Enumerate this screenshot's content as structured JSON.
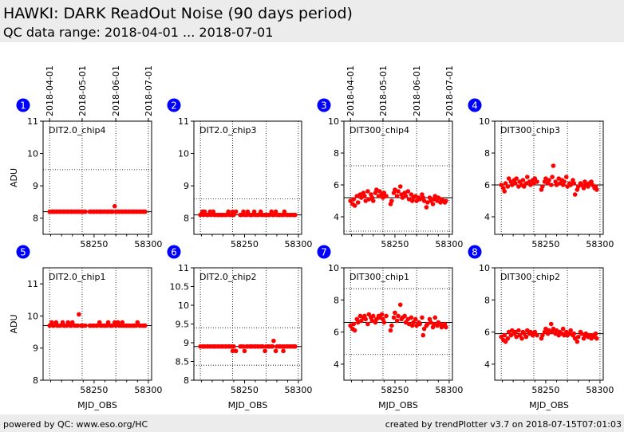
{
  "header": {
    "title": "HAWKI: DARK ReadOut Noise (90 days period)",
    "subtitle": "QC data range: 2018-04-01 ... 2018-07-01"
  },
  "footer": {
    "left": "powered by QC: www.eso.org/HC",
    "right": "created by trendPlotter v3.7 on 2018-07-15T07:01:03"
  },
  "colors": {
    "marker": "#ff0000",
    "badge": "#0000ff",
    "frame": "#000000"
  },
  "chart_data": [
    {
      "index": "1",
      "type": "scatter",
      "label": "DIT2.0_chip4",
      "ylabel": "ADU",
      "xlabel": "",
      "xlim": [
        58203,
        58303
      ],
      "ylim": [
        7.5,
        11
      ],
      "yticks": [
        8,
        9,
        10,
        11
      ],
      "xticks": [
        58250,
        58300
      ],
      "ref_line": 8.2,
      "upper_line": 9.5,
      "lower_line": null,
      "top_dates": [
        "2018-04-01",
        "2018-05-01",
        "2018-06-01",
        "2018-07-01"
      ],
      "x": [
        58209,
        58211,
        58212,
        58213,
        58215,
        58216,
        58218,
        58219,
        58221,
        58222,
        58223,
        58225,
        58226,
        58228,
        58229,
        58230,
        58232,
        58233,
        58235,
        58236,
        58238,
        58239,
        58240,
        58242,
        58246,
        58247,
        58249,
        58250,
        58252,
        58253,
        58255,
        58256,
        58257,
        58259,
        58260,
        58262,
        58263,
        58265,
        58266,
        58267,
        58269,
        58270,
        58272,
        58273,
        58275,
        58276,
        58277,
        58279,
        58280,
        58282,
        58283,
        58285,
        58286,
        58287,
        58289,
        58290,
        58292,
        58293,
        58295,
        58296,
        58297
      ],
      "y": [
        8.2,
        8.2,
        8.2,
        8.2,
        8.2,
        8.2,
        8.2,
        8.2,
        8.2,
        8.2,
        8.2,
        8.2,
        8.2,
        8.2,
        8.2,
        8.2,
        8.2,
        8.2,
        8.2,
        8.2,
        8.2,
        8.2,
        8.2,
        8.2,
        8.2,
        8.2,
        8.2,
        8.2,
        8.2,
        8.2,
        8.2,
        8.2,
        8.2,
        8.2,
        8.2,
        8.2,
        8.2,
        8.2,
        8.2,
        8.2,
        8.37,
        8.2,
        8.2,
        8.2,
        8.2,
        8.2,
        8.2,
        8.2,
        8.2,
        8.2,
        8.2,
        8.2,
        8.2,
        8.2,
        8.2,
        8.2,
        8.2,
        8.2,
        8.2,
        8.2,
        8.2
      ]
    },
    {
      "index": "2",
      "type": "scatter",
      "label": "DIT2.0_chip3",
      "ylabel": "",
      "xlabel": "",
      "xlim": [
        58203,
        58303
      ],
      "ylim": [
        7.5,
        11
      ],
      "yticks": [
        8,
        9,
        10,
        11
      ],
      "xticks": [
        58250,
        58300
      ],
      "ref_line": 8.1,
      "upper_line": 8.6,
      "lower_line": null,
      "top_dates": [],
      "x": [
        58209,
        58211,
        58212,
        58213,
        58215,
        58216,
        58218,
        58219,
        58221,
        58222,
        58223,
        58225,
        58226,
        58228,
        58229,
        58230,
        58232,
        58233,
        58235,
        58236,
        58238,
        58239,
        58240,
        58242,
        58246,
        58247,
        58249,
        58250,
        58252,
        58253,
        58255,
        58256,
        58257,
        58259,
        58260,
        58262,
        58263,
        58265,
        58266,
        58267,
        58269,
        58270,
        58272,
        58273,
        58275,
        58276,
        58277,
        58279,
        58280,
        58282,
        58283,
        58285,
        58286,
        58287,
        58289,
        58290,
        58292,
        58293,
        58295,
        58296,
        58297
      ],
      "y": [
        8.1,
        8.2,
        8.1,
        8.2,
        8.1,
        8.1,
        8.2,
        8.1,
        8.2,
        8.1,
        8.1,
        8.1,
        8.1,
        8.1,
        8.1,
        8.1,
        8.1,
        8.1,
        8.2,
        8.1,
        8.1,
        8.2,
        8.1,
        8.2,
        8.1,
        8.1,
        8.2,
        8.1,
        8.1,
        8.2,
        8.1,
        8.1,
        8.1,
        8.2,
        8.1,
        8.1,
        8.1,
        8.2,
        8.1,
        8.1,
        8.1,
        8.1,
        8.1,
        8.1,
        8.2,
        8.1,
        8.1,
        8.2,
        8.1,
        8.1,
        8.1,
        8.1,
        8.1,
        8.2,
        8.1,
        8.1,
        8.1,
        8.1,
        8.1,
        8.1,
        8.1
      ]
    },
    {
      "index": "3",
      "type": "scatter",
      "label": "DIT300_chip4",
      "ylabel": "",
      "xlabel": "",
      "xlim": [
        58203,
        58303
      ],
      "ylim": [
        2.9,
        10
      ],
      "yticks": [
        4,
        6,
        8,
        10
      ],
      "xticks": [
        58250,
        58300
      ],
      "ref_line": 5.2,
      "upper_line": 7.2,
      "lower_line": 3.1,
      "top_dates": [
        "2018-04-01",
        "2018-05-01",
        "2018-06-01",
        "2018-07-01"
      ],
      "x": [
        58209,
        58211,
        58212,
        58213,
        58215,
        58216,
        58218,
        58219,
        58221,
        58222,
        58223,
        58225,
        58226,
        58228,
        58229,
        58230,
        58232,
        58233,
        58235,
        58236,
        58238,
        58239,
        58240,
        58242,
        58246,
        58247,
        58249,
        58250,
        58252,
        58253,
        58255,
        58256,
        58257,
        58259,
        58260,
        58262,
        58263,
        58265,
        58266,
        58267,
        58269,
        58270,
        58272,
        58273,
        58275,
        58276,
        58277,
        58279,
        58280,
        58282,
        58283,
        58285,
        58286,
        58287,
        58289,
        58290,
        58292,
        58293,
        58295,
        58296,
        58297
      ],
      "y": [
        5.0,
        4.8,
        5.1,
        4.7,
        5.3,
        4.9,
        5.4,
        5.2,
        5.5,
        5.3,
        5.0,
        5.6,
        5.1,
        5.4,
        5.2,
        5.0,
        5.5,
        5.7,
        5.3,
        5.6,
        5.4,
        5.2,
        5.5,
        5.3,
        4.8,
        5.0,
        5.5,
        5.7,
        5.3,
        5.6,
        5.9,
        5.4,
        5.2,
        5.5,
        5.3,
        5.6,
        5.1,
        5.4,
        5.0,
        5.2,
        5.3,
        5.0,
        5.2,
        5.1,
        5.4,
        5.2,
        5.0,
        4.6,
        4.9,
        5.2,
        5.0,
        4.8,
        5.1,
        5.3,
        5.0,
        5.2,
        4.9,
        5.1,
        5.0,
        4.9,
        5.0
      ]
    },
    {
      "index": "4",
      "type": "scatter",
      "label": "DIT300_chip3",
      "ylabel": "",
      "xlabel": "",
      "xlim": [
        58203,
        58303
      ],
      "ylim": [
        2.9,
        10
      ],
      "yticks": [
        4,
        6,
        8,
        10
      ],
      "xticks": [
        58250,
        58300
      ],
      "ref_line": 6.0,
      "upper_line": null,
      "lower_line": null,
      "top_dates": [],
      "x": [
        58209,
        58211,
        58212,
        58213,
        58215,
        58216,
        58218,
        58219,
        58221,
        58222,
        58223,
        58225,
        58226,
        58228,
        58229,
        58230,
        58232,
        58233,
        58235,
        58236,
        58238,
        58239,
        58240,
        58242,
        58246,
        58247,
        58249,
        58250,
        58252,
        58253,
        58255,
        58256,
        58257,
        58259,
        58260,
        58262,
        58263,
        58265,
        58266,
        58267,
        58269,
        58270,
        58272,
        58273,
        58275,
        58276,
        58277,
        58279,
        58280,
        58282,
        58283,
        58285,
        58286,
        58287,
        58289,
        58290,
        58292,
        58293,
        58295,
        58296,
        58297
      ],
      "y": [
        6.0,
        5.8,
        5.6,
        6.1,
        5.9,
        6.4,
        6.2,
        6.0,
        6.3,
        6.1,
        6.4,
        5.9,
        6.2,
        6.0,
        6.3,
        5.9,
        6.1,
        6.5,
        6.2,
        6.0,
        6.3,
        6.1,
        6.4,
        6.2,
        5.7,
        5.9,
        6.2,
        6.4,
        6.1,
        6.3,
        6.0,
        6.5,
        7.2,
        6.2,
        6.0,
        6.4,
        6.1,
        6.3,
        6.0,
        6.2,
        6.5,
        5.9,
        6.1,
        6.0,
        6.3,
        6.1,
        5.4,
        5.7,
        5.9,
        6.1,
        6.0,
        5.8,
        6.2,
        6.0,
        5.9,
        6.1,
        6.2,
        6.0,
        5.8,
        5.9,
        5.7
      ]
    },
    {
      "index": "5",
      "type": "scatter",
      "label": "DIT2.0_chip1",
      "ylabel": "ADU",
      "xlabel": "MJD_OBS",
      "xlim": [
        58203,
        58303
      ],
      "ylim": [
        8,
        11.5
      ],
      "yticks": [
        8,
        9,
        10,
        11
      ],
      "xticks": [
        58250,
        58300
      ],
      "ref_line": 9.7,
      "upper_line": null,
      "lower_line": null,
      "top_dates": [],
      "x": [
        58209,
        58211,
        58212,
        58213,
        58215,
        58216,
        58218,
        58219,
        58221,
        58222,
        58223,
        58225,
        58226,
        58228,
        58229,
        58230,
        58232,
        58233,
        58235,
        58236,
        58238,
        58239,
        58240,
        58242,
        58246,
        58247,
        58249,
        58250,
        58252,
        58253,
        58255,
        58256,
        58257,
        58259,
        58260,
        58262,
        58263,
        58265,
        58266,
        58267,
        58269,
        58270,
        58272,
        58273,
        58275,
        58276,
        58277,
        58279,
        58280,
        58282,
        58283,
        58285,
        58286,
        58287,
        58289,
        58290,
        58292,
        58293,
        58295,
        58296,
        58297
      ],
      "y": [
        9.7,
        9.8,
        9.7,
        9.7,
        9.8,
        9.7,
        9.7,
        9.7,
        9.8,
        9.7,
        9.7,
        9.7,
        9.8,
        9.7,
        9.7,
        9.8,
        9.7,
        9.7,
        9.7,
        10.05,
        9.7,
        9.7,
        9.7,
        9.7,
        9.7,
        9.7,
        9.7,
        9.7,
        9.7,
        9.7,
        9.8,
        9.7,
        9.7,
        9.7,
        9.7,
        9.7,
        9.8,
        9.7,
        9.7,
        9.7,
        9.8,
        9.7,
        9.8,
        9.7,
        9.7,
        9.8,
        9.7,
        9.7,
        9.7,
        9.7,
        9.7,
        9.7,
        9.7,
        9.7,
        9.7,
        9.8,
        9.7,
        9.7,
        9.7,
        9.7,
        9.7
      ]
    },
    {
      "index": "6",
      "type": "scatter",
      "label": "DIT2.0_chip2",
      "ylabel": "",
      "xlabel": "MJD_OBS",
      "xlim": [
        58203,
        58303
      ],
      "ylim": [
        8,
        11
      ],
      "yticks": [
        8.0,
        8.5,
        9.0,
        9.5,
        10.0,
        10.5,
        11.0
      ],
      "xticks": [
        58250,
        58300
      ],
      "ref_line": 8.9,
      "upper_line": 9.4,
      "lower_line": 8.4,
      "top_dates": [],
      "x": [
        58209,
        58211,
        58212,
        58213,
        58215,
        58216,
        58218,
        58219,
        58221,
        58222,
        58223,
        58225,
        58226,
        58228,
        58229,
        58230,
        58232,
        58233,
        58235,
        58236,
        58238,
        58239,
        58240,
        58242,
        58246,
        58247,
        58249,
        58250,
        58252,
        58253,
        58255,
        58256,
        58257,
        58259,
        58260,
        58262,
        58263,
        58265,
        58266,
        58267,
        58269,
        58270,
        58272,
        58273,
        58275,
        58276,
        58277,
        58279,
        58280,
        58282,
        58283,
        58285,
        58286,
        58287,
        58289,
        58290,
        58292,
        58293,
        58295,
        58296,
        58297
      ],
      "y": [
        8.9,
        8.9,
        8.9,
        8.9,
        8.9,
        8.9,
        8.9,
        8.9,
        8.9,
        8.9,
        8.9,
        8.9,
        8.9,
        8.9,
        8.9,
        8.9,
        8.9,
        8.9,
        8.9,
        8.9,
        8.9,
        8.78,
        8.9,
        8.78,
        8.9,
        8.9,
        8.9,
        8.78,
        8.9,
        8.9,
        8.9,
        8.9,
        8.9,
        8.9,
        8.9,
        8.9,
        8.9,
        8.9,
        8.9,
        8.9,
        8.78,
        8.9,
        8.9,
        8.9,
        8.9,
        8.9,
        9.05,
        8.78,
        8.9,
        8.9,
        8.9,
        8.9,
        8.78,
        8.9,
        8.9,
        8.9,
        8.9,
        8.9,
        8.9,
        8.9,
        8.9
      ]
    },
    {
      "index": "7",
      "type": "scatter",
      "label": "DIT300_chip1",
      "ylabel": "",
      "xlabel": "MJD_OBS",
      "xlim": [
        58203,
        58303
      ],
      "ylim": [
        3,
        10
      ],
      "yticks": [
        4,
        6,
        8,
        10
      ],
      "xticks": [
        58250,
        58300
      ],
      "ref_line": 6.6,
      "upper_line": 8.7,
      "lower_line": 4.6,
      "top_dates": [],
      "x": [
        58209,
        58211,
        58212,
        58213,
        58215,
        58216,
        58218,
        58219,
        58221,
        58222,
        58223,
        58225,
        58226,
        58228,
        58229,
        58230,
        58232,
        58233,
        58235,
        58236,
        58238,
        58239,
        58240,
        58242,
        58246,
        58247,
        58249,
        58250,
        58252,
        58253,
        58255,
        58256,
        58257,
        58259,
        58260,
        58262,
        58263,
        58265,
        58266,
        58267,
        58269,
        58270,
        58272,
        58273,
        58275,
        58276,
        58277,
        58279,
        58280,
        58282,
        58283,
        58285,
        58286,
        58287,
        58289,
        58290,
        58292,
        58293,
        58295,
        58296,
        58297
      ],
      "y": [
        6.4,
        6.2,
        6.5,
        6.1,
        6.8,
        6.6,
        7.0,
        6.7,
        6.9,
        7.0,
        6.8,
        6.5,
        7.1,
        6.9,
        6.7,
        7.0,
        6.6,
        6.8,
        7.0,
        6.9,
        7.1,
        6.8,
        6.6,
        7.0,
        6.1,
        6.4,
        6.9,
        7.2,
        6.7,
        7.0,
        7.7,
        6.8,
        6.9,
        7.0,
        6.6,
        6.8,
        6.5,
        6.9,
        6.4,
        6.6,
        6.8,
        6.4,
        6.6,
        6.5,
        6.9,
        5.8,
        6.2,
        6.4,
        6.5,
        6.8,
        6.6,
        6.3,
        6.5,
        6.9,
        6.4,
        6.6,
        6.5,
        6.3,
        6.4,
        6.5,
        6.3
      ]
    },
    {
      "index": "8",
      "type": "scatter",
      "label": "DIT300_chip2",
      "ylabel": "",
      "xlabel": "MJD_OBS",
      "xlim": [
        58203,
        58303
      ],
      "ylim": [
        3,
        10
      ],
      "yticks": [
        4,
        6,
        8,
        10
      ],
      "xticks": [
        58250,
        58300
      ],
      "ref_line": 5.9,
      "upper_line": null,
      "lower_line": null,
      "top_dates": [],
      "x": [
        58209,
        58211,
        58212,
        58213,
        58215,
        58216,
        58218,
        58219,
        58221,
        58222,
        58223,
        58225,
        58226,
        58228,
        58229,
        58230,
        58232,
        58233,
        58235,
        58236,
        58238,
        58239,
        58240,
        58242,
        58246,
        58247,
        58249,
        58250,
        58252,
        58253,
        58255,
        58256,
        58257,
        58259,
        58260,
        58262,
        58263,
        58265,
        58266,
        58267,
        58269,
        58270,
        58272,
        58273,
        58275,
        58276,
        58277,
        58279,
        58280,
        58282,
        58283,
        58285,
        58286,
        58287,
        58289,
        58290,
        58292,
        58293,
        58295,
        58296,
        58297
      ],
      "y": [
        5.7,
        5.5,
        5.8,
        5.4,
        5.6,
        6.0,
        5.8,
        6.1,
        5.9,
        6.0,
        5.7,
        6.1,
        5.8,
        5.6,
        6.0,
        5.9,
        5.7,
        6.1,
        5.9,
        6.0,
        5.8,
        5.9,
        6.0,
        5.8,
        5.6,
        5.8,
        6.0,
        6.2,
        5.9,
        6.1,
        6.5,
        6.0,
        6.2,
        5.9,
        6.1,
        5.8,
        6.0,
        5.9,
        6.2,
        5.8,
        6.0,
        5.8,
        5.9,
        6.1,
        5.8,
        5.9,
        5.6,
        5.4,
        5.7,
        6.0,
        5.9,
        5.6,
        5.8,
        5.9,
        5.7,
        5.8,
        5.6,
        5.8,
        5.7,
        5.9,
        5.6
      ]
    }
  ]
}
